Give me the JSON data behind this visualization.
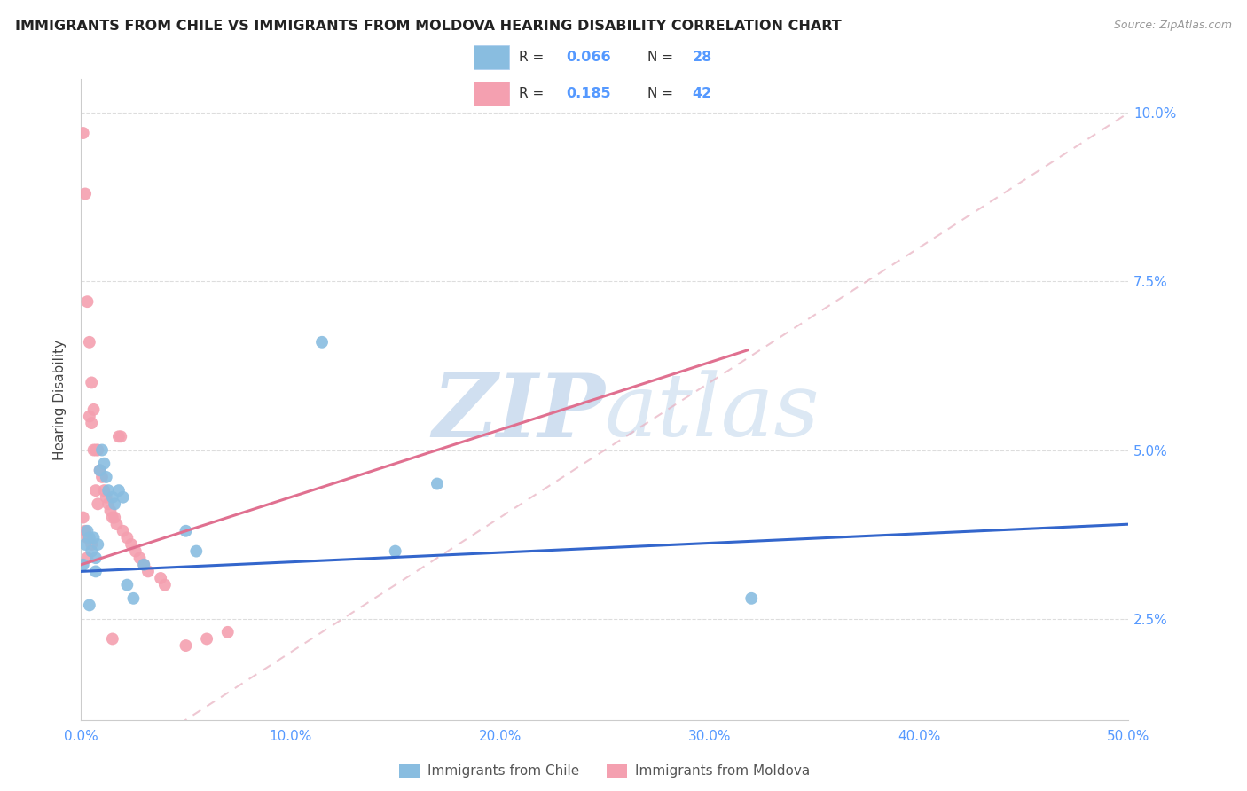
{
  "title": "IMMIGRANTS FROM CHILE VS IMMIGRANTS FROM MOLDOVA HEARING DISABILITY CORRELATION CHART",
  "source": "Source: ZipAtlas.com",
  "ylabel": "Hearing Disability",
  "x_ticks": [
    0.0,
    0.1,
    0.2,
    0.3,
    0.4,
    0.5
  ],
  "x_tick_labels": [
    "0.0%",
    "10.0%",
    "20.0%",
    "30.0%",
    "40.0%",
    "50.0%"
  ],
  "y_ticks": [
    0.025,
    0.05,
    0.075,
    0.1
  ],
  "y_tick_labels": [
    "2.5%",
    "5.0%",
    "7.5%",
    "10.0%"
  ],
  "xlim": [
    0.0,
    0.5
  ],
  "ylim": [
    0.01,
    0.105
  ],
  "chile_color": "#89bde0",
  "moldova_color": "#f4a0b0",
  "chile_line_color": "#3366cc",
  "moldova_line_color": "#e07090",
  "moldova_dash_line_color": "#e8b0c0",
  "chile_R": 0.066,
  "chile_N": 28,
  "moldova_R": 0.185,
  "moldova_N": 42,
  "watermark_zip": "ZIP",
  "watermark_atlas": "atlas",
  "watermark_color": "#d0dff0",
  "legend_label_chile": "R =  0.066   N = 28",
  "legend_label_moldova": "R =  0.185   N = 42",
  "legend_chile_label": "Immigrants from Chile",
  "legend_moldova_label": "Immigrants from Moldova",
  "chile_scatter_x": [
    0.001,
    0.002,
    0.003,
    0.004,
    0.005,
    0.006,
    0.007,
    0.008,
    0.009,
    0.01,
    0.011,
    0.012,
    0.013,
    0.015,
    0.016,
    0.018,
    0.02,
    0.022,
    0.025,
    0.03,
    0.05,
    0.055,
    0.115,
    0.15,
    0.17,
    0.32,
    0.004,
    0.007
  ],
  "chile_scatter_y": [
    0.033,
    0.036,
    0.038,
    0.037,
    0.035,
    0.037,
    0.034,
    0.036,
    0.047,
    0.05,
    0.048,
    0.046,
    0.044,
    0.043,
    0.042,
    0.044,
    0.043,
    0.03,
    0.028,
    0.033,
    0.038,
    0.035,
    0.066,
    0.035,
    0.045,
    0.028,
    0.027,
    0.032
  ],
  "moldova_scatter_x": [
    0.001,
    0.001,
    0.002,
    0.002,
    0.003,
    0.003,
    0.004,
    0.004,
    0.005,
    0.005,
    0.006,
    0.006,
    0.007,
    0.007,
    0.008,
    0.008,
    0.009,
    0.01,
    0.011,
    0.012,
    0.013,
    0.014,
    0.015,
    0.016,
    0.017,
    0.018,
    0.019,
    0.02,
    0.022,
    0.024,
    0.026,
    0.028,
    0.03,
    0.032,
    0.038,
    0.04,
    0.05,
    0.06,
    0.07,
    0.003,
    0.005,
    0.015
  ],
  "moldova_scatter_y": [
    0.097,
    0.04,
    0.088,
    0.038,
    0.072,
    0.037,
    0.066,
    0.055,
    0.06,
    0.054,
    0.056,
    0.05,
    0.05,
    0.044,
    0.05,
    0.042,
    0.047,
    0.046,
    0.044,
    0.043,
    0.042,
    0.041,
    0.04,
    0.04,
    0.039,
    0.052,
    0.052,
    0.038,
    0.037,
    0.036,
    0.035,
    0.034,
    0.033,
    0.032,
    0.031,
    0.03,
    0.021,
    0.022,
    0.023,
    0.034,
    0.036,
    0.022
  ],
  "chile_line_intercept": 0.032,
  "chile_line_slope": 0.014,
  "moldova_line_intercept": 0.033,
  "moldova_line_slope": 0.1,
  "moldova_dash_intercept": 0.0,
  "moldova_dash_slope": 0.2,
  "background_color": "#ffffff",
  "grid_color": "#dddddd",
  "tick_color": "#5599ff",
  "title_fontsize": 11.5,
  "axis_label_fontsize": 11
}
